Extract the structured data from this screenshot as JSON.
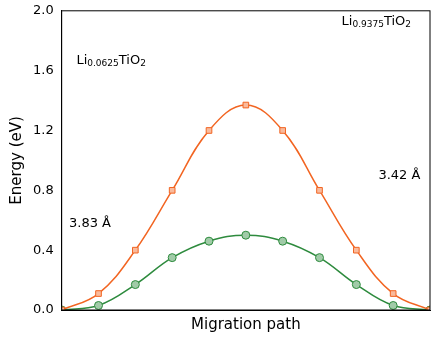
{
  "chart_data": {
    "type": "line",
    "x_label": "Migration path",
    "y_label": "Energy (eV)",
    "x": [
      0,
      1,
      2,
      3,
      4,
      5,
      6,
      7,
      8,
      9,
      10
    ],
    "xlim": [
      0,
      10
    ],
    "ylim": [
      0,
      2.0
    ],
    "yticks": [
      {
        "value": 0,
        "label": "0.0"
      },
      {
        "value": 0.4,
        "label": "0.4"
      },
      {
        "value": 0.8,
        "label": "0.8"
      },
      {
        "value": 1.2,
        "label": "1.2"
      },
      {
        "value": 1.6,
        "label": "1.6"
      },
      {
        "value": 2.0,
        "label": "2.0"
      }
    ],
    "tick_labels": "y",
    "grid": false,
    "series": [
      {
        "name": "Li0.9375TiO2",
        "color": "#f26522",
        "marker": "square",
        "line_style": "solid",
        "values": [
          0,
          0.11,
          0.4,
          0.8,
          1.2,
          1.37,
          1.2,
          0.8,
          0.4,
          0.11,
          0
        ]
      },
      {
        "name": "Li0.0625TiO2",
        "color": "#2e8b3e",
        "marker": "circle",
        "line_style": "solid",
        "values": [
          0,
          0.03,
          0.17,
          0.35,
          0.46,
          0.5,
          0.46,
          0.35,
          0.17,
          0.03,
          0
        ]
      }
    ],
    "annotations": [
      {
        "text": "Li0.0625TiO2",
        "x": 0.4,
        "y": 1.67
      },
      {
        "text": "Li0.9375TiO2",
        "x": 7.6,
        "y": 1.93
      },
      {
        "text": "3.83 Å",
        "x": 0.2,
        "y": 0.58
      },
      {
        "text": "3.42 Å",
        "x": 8.6,
        "y": 0.9
      }
    ]
  }
}
